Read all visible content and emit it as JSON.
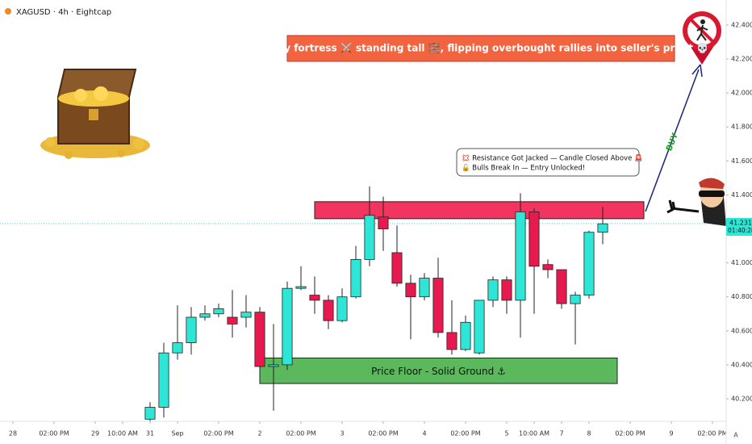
{
  "chart_data": {
    "type": "candlestick",
    "title": "XAGUSD · 4h · Eightcap",
    "x": [
      0,
      1,
      2,
      3,
      4,
      5,
      6,
      7,
      8,
      9,
      10,
      11,
      12,
      13,
      14,
      15,
      16,
      17,
      18,
      19,
      20,
      21,
      22,
      23,
      24,
      25,
      26,
      27,
      28,
      29,
      30,
      31,
      32,
      33
    ],
    "open": [
      40.08,
      40.15,
      40.47,
      40.53,
      40.68,
      40.7,
      40.68,
      40.68,
      40.71,
      40.39,
      40.4,
      40.85,
      40.81,
      40.78,
      40.66,
      40.8,
      41.02,
      41.27,
      41.06,
      40.88,
      40.8,
      40.91,
      40.59,
      40.49,
      40.47,
      40.78,
      40.9,
      40.78,
      41.3,
      40.99,
      40.96,
      40.76,
      40.81,
      41.18
    ],
    "high": [
      40.18,
      40.53,
      40.75,
      40.74,
      40.75,
      40.76,
      40.84,
      40.81,
      40.74,
      40.64,
      40.89,
      40.98,
      40.92,
      40.81,
      40.85,
      41.1,
      41.45,
      41.39,
      41.22,
      40.93,
      40.94,
      41.03,
      40.78,
      40.69,
      40.78,
      40.92,
      40.92,
      41.41,
      41.32,
      41.02,
      40.96,
      40.83,
      41.19,
      41.33
    ],
    "low": [
      40.06,
      40.09,
      40.43,
      40.46,
      40.66,
      40.68,
      40.56,
      40.62,
      40.29,
      40.13,
      40.37,
      40.84,
      40.7,
      40.61,
      40.65,
      40.79,
      40.98,
      41.07,
      40.86,
      40.55,
      40.78,
      40.56,
      40.46,
      40.48,
      40.46,
      40.74,
      40.7,
      40.56,
      40.7,
      40.91,
      40.73,
      40.52,
      40.79,
      41.11
    ],
    "close": [
      40.15,
      40.47,
      40.53,
      40.68,
      40.7,
      40.73,
      40.64,
      40.71,
      40.39,
      40.4,
      40.85,
      40.86,
      40.78,
      40.66,
      40.8,
      41.02,
      41.28,
      41.2,
      40.88,
      40.8,
      40.91,
      40.59,
      40.49,
      40.65,
      40.78,
      40.9,
      40.78,
      41.3,
      40.98,
      40.96,
      40.76,
      40.81,
      41.18,
      41.23
    ],
    "up_color": "#2ee6d6",
    "down_color": "#e8194f",
    "xlim": [
      -10.94,
      42
    ],
    "xticks": [
      {
        "value": -10,
        "label": "28"
      },
      {
        "value": -7,
        "label": "02:00 PM"
      },
      {
        "value": -4,
        "label": "29"
      },
      {
        "value": -2,
        "label": "10:00 AM"
      },
      {
        "value": 0,
        "label": "31"
      },
      {
        "value": 2,
        "label": "Sep"
      },
      {
        "value": 5,
        "label": "02:00 PM"
      },
      {
        "value": 8,
        "label": "2"
      },
      {
        "value": 11,
        "label": "02:00 PM"
      },
      {
        "value": 14,
        "label": "3"
      },
      {
        "value": 17,
        "label": "02:00 PM"
      },
      {
        "value": 20,
        "label": "4"
      },
      {
        "value": 23,
        "label": "02:00 PM"
      },
      {
        "value": 26,
        "label": "5"
      },
      {
        "value": 28,
        "label": "10:00 AM"
      },
      {
        "value": 30,
        "label": "7"
      },
      {
        "value": 32,
        "label": "8"
      },
      {
        "value": 35,
        "label": "02:00 PM"
      },
      {
        "value": 38,
        "label": "9"
      },
      {
        "value": 41,
        "label": "02:00 PM"
      }
    ],
    "ylim": [
      40.067,
      42.547
    ],
    "yticks": [
      {
        "value": 40.2,
        "label": "40.200"
      },
      {
        "value": 40.4,
        "label": "40.400"
      },
      {
        "value": 40.6,
        "label": "40.600"
      },
      {
        "value": 40.8,
        "label": "40.800"
      },
      {
        "value": 41.0,
        "label": "41.000"
      },
      {
        "value": 41.2,
        "label": "41.200"
      },
      {
        "value": 41.4,
        "label": "41.400"
      },
      {
        "value": 41.6,
        "label": "41.600"
      },
      {
        "value": 41.8,
        "label": "41.800"
      },
      {
        "value": 42.0,
        "label": "42.000"
      },
      {
        "value": 42.2,
        "label": "42.200"
      },
      {
        "value": 42.4,
        "label": "42.400"
      }
    ],
    "last_price": {
      "value": 41.231,
      "label": "41.231",
      "countdown": "01:40:28",
      "color": "#2ee6d6"
    },
    "zones": [
      {
        "xmin": 12,
        "xmax": 36,
        "ymin": 41.26,
        "ymax": 41.36,
        "color": "#f2345e"
      },
      {
        "label": "Price Floor - Solid Ground ⚓",
        "xmin": 8,
        "xmax": 34.06,
        "ymin": 40.29,
        "ymax": 40.44,
        "color": "#5cb85c"
      }
    ],
    "banner": "Supply fortress ⚔️ standing tall 🧱, flipping overbought rallies into seller's profit 💀",
    "callout": [
      "💢 Resistance Got Jacked — Candle Closed Above 🚨",
      "🔓 Bulls Break In — Entry Unlocked!"
    ],
    "arrow_label": "BUY",
    "scale_mode": "A"
  }
}
